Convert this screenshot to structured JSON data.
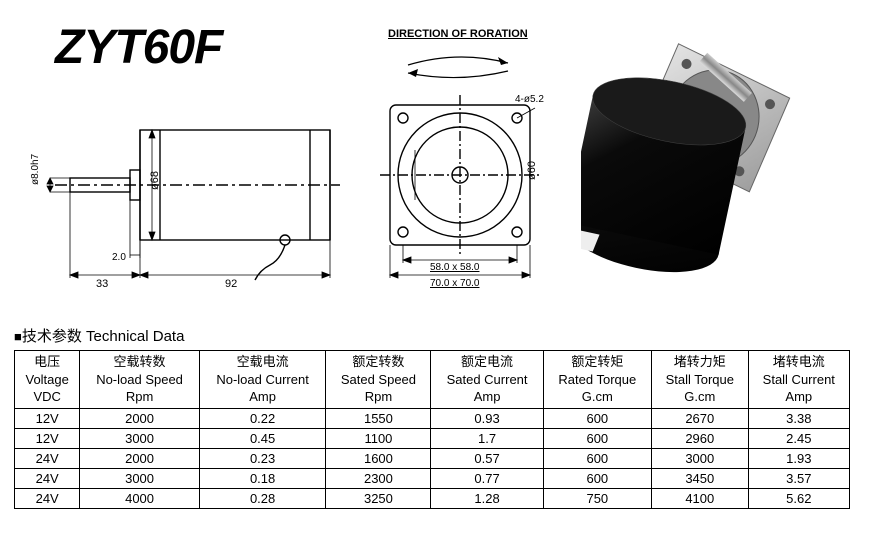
{
  "title": "ZYT60F",
  "rotation_label": "DIRECTION OF RORATION",
  "section_header_cn": "技术参数",
  "section_header_en": "Technical Data",
  "drawing": {
    "shaft_dia": "ø8.0h7",
    "body_dia": "ø68",
    "front_dia": "ø60",
    "step": "2.0",
    "shaft_len": "33",
    "body_len": "92",
    "bolt_circle": "58.0 x 58.0",
    "flange": "70.0 x 70.0",
    "hole": "4-ø5.2"
  },
  "table": {
    "columns": [
      {
        "cn": "电压",
        "en": "Voltage",
        "unit": "VDC"
      },
      {
        "cn": "空载转数",
        "en": "No-load Speed",
        "unit": "Rpm"
      },
      {
        "cn": "空载电流",
        "en": "No-load Current",
        "unit": "Amp"
      },
      {
        "cn": "额定转数",
        "en": "Sated Speed",
        "unit": "Rpm"
      },
      {
        "cn": "额定电流",
        "en": "Sated Current",
        "unit": "Amp"
      },
      {
        "cn": "额定转矩",
        "en": "Rated Torque",
        "unit": "G.cm"
      },
      {
        "cn": "堵转力矩",
        "en": "Stall Torque",
        "unit": "G.cm"
      },
      {
        "cn": "堵转电流",
        "en": "Stall Current",
        "unit": "Amp"
      }
    ],
    "rows": [
      [
        "12V",
        "2000",
        "0.22",
        "1550",
        "0.93",
        "600",
        "2670",
        "3.38"
      ],
      [
        "12V",
        "3000",
        "0.45",
        "1100",
        "1.7",
        "600",
        "2960",
        "2.45"
      ],
      [
        "24V",
        "2000",
        "0.23",
        "1600",
        "0.57",
        "600",
        "3000",
        "1.93"
      ],
      [
        "24V",
        "3000",
        "0.18",
        "2300",
        "0.77",
        "600",
        "3450",
        "3.57"
      ],
      [
        "24V",
        "4000",
        "0.28",
        "3250",
        "1.28",
        "750",
        "4100",
        "5.62"
      ]
    ]
  },
  "colors": {
    "stroke": "#000000",
    "motor_body": "#0a0a0a",
    "motor_flange": "#c8c8c8",
    "motor_shaft": "#b0b0b0",
    "bg": "#ffffff"
  }
}
